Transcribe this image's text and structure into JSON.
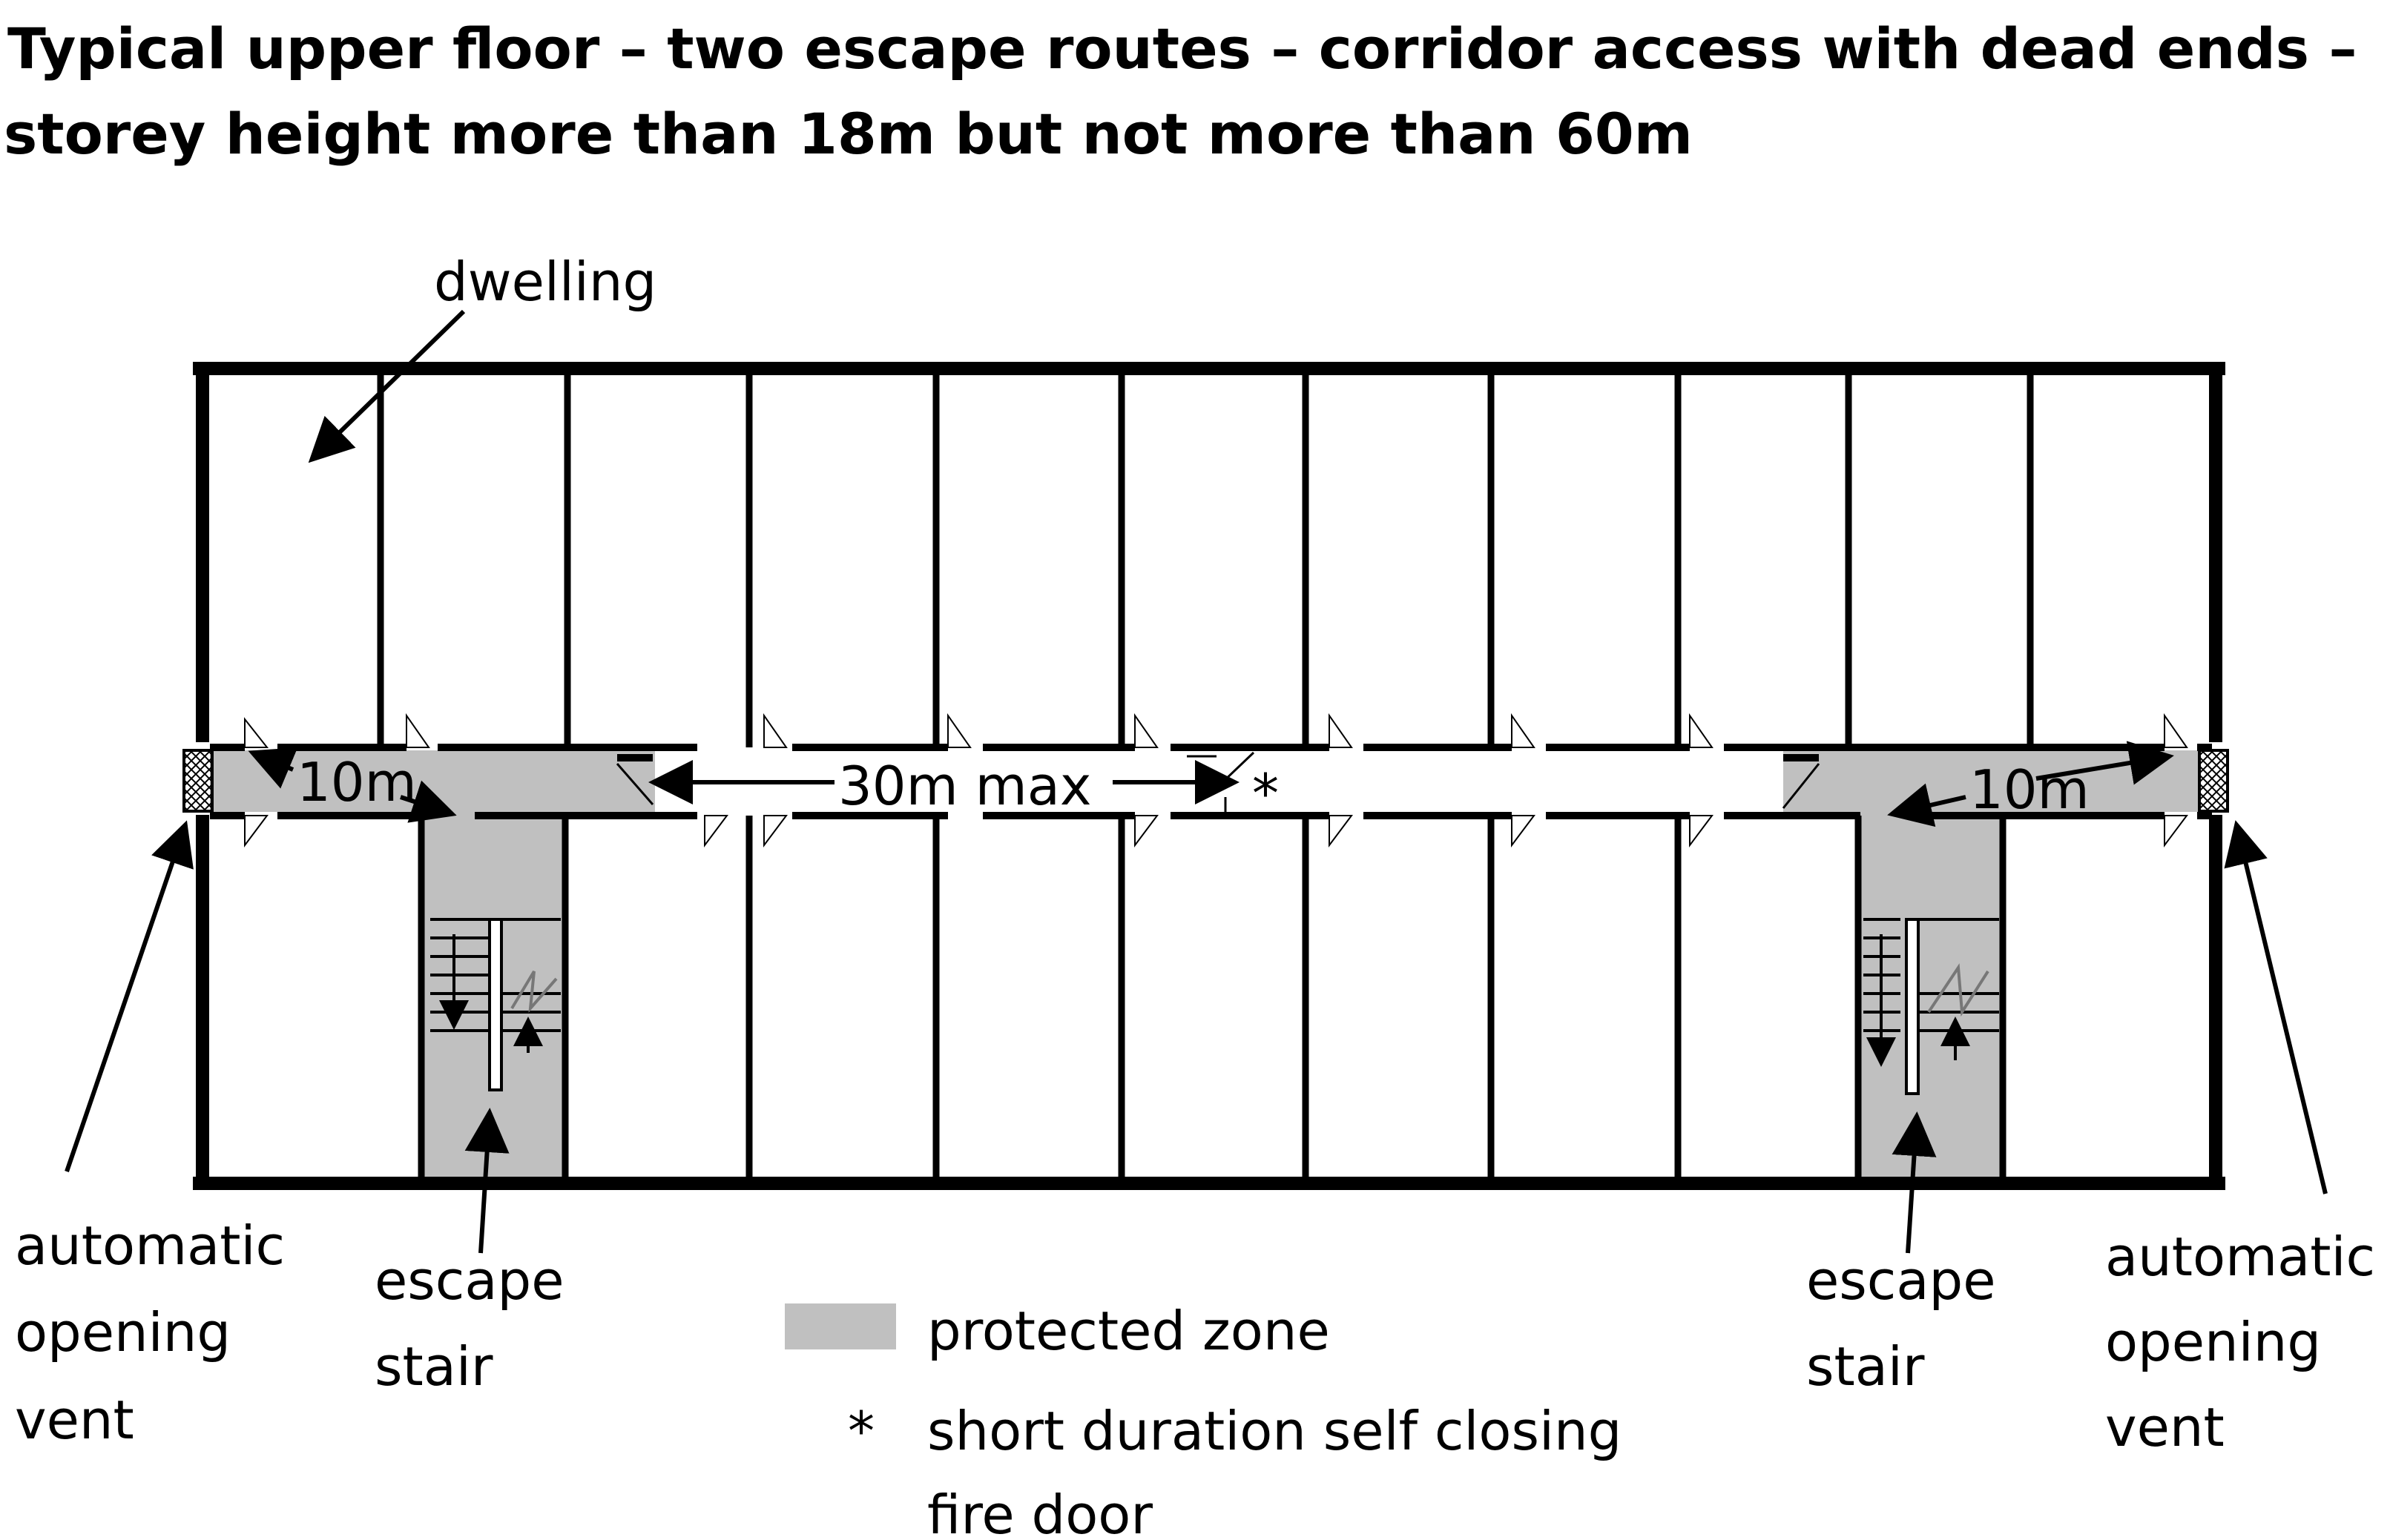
{
  "title": {
    "line1": "Typical upper floor – two escape routes – corridor access with dead ends –",
    "line2": "storey height more than 18m but not more than 60m"
  },
  "labels": {
    "dwelling": "dwelling",
    "dim_left": "10m",
    "dim_center": "30m max",
    "dim_right": "10m",
    "star": "*",
    "vent_left": [
      "automatic",
      "opening",
      "vent"
    ],
    "vent_right": [
      "automatic",
      "opening",
      "vent"
    ],
    "stair_left": [
      "escape",
      "stair"
    ],
    "stair_right": [
      "escape",
      "stair"
    ]
  },
  "legend": {
    "protected_zone": "protected zone",
    "star_symbol": "*",
    "fire_door_line1": "short duration self closing",
    "fire_door_line2": "fire door"
  },
  "colors": {
    "wall": "#000000",
    "protected_zone": "#c0c0c0",
    "background": "#ffffff"
  }
}
